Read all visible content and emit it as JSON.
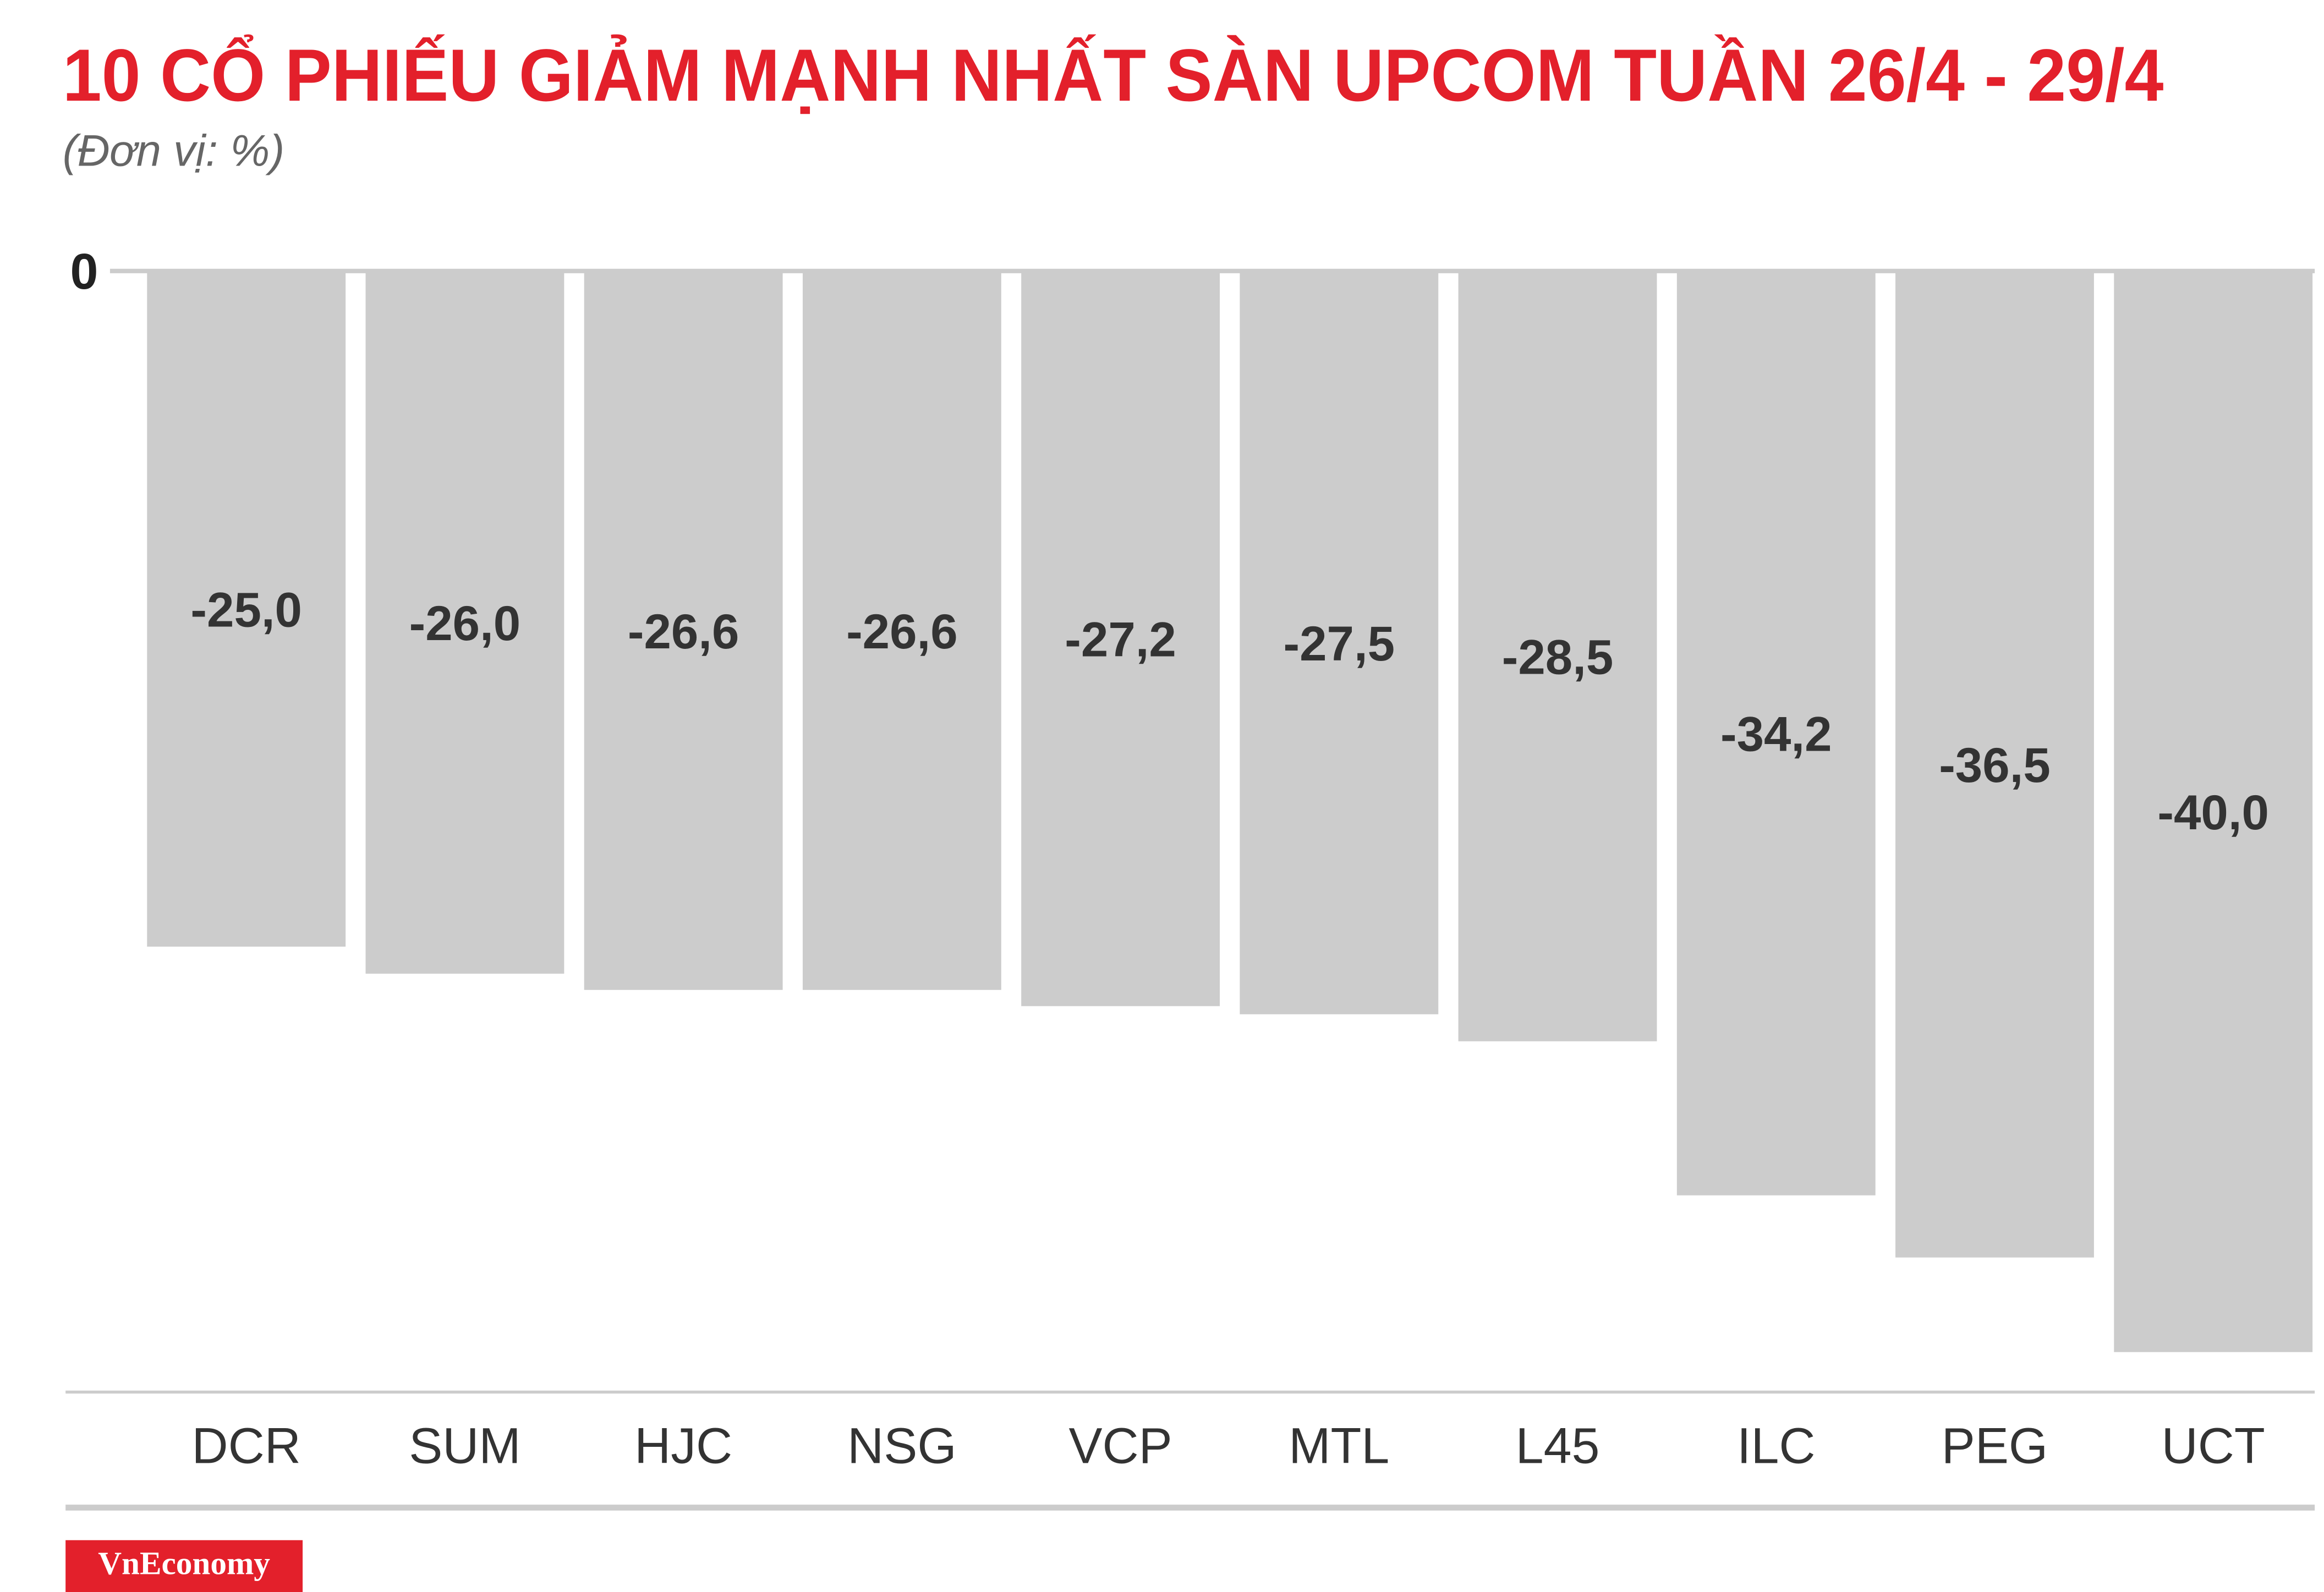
{
  "chart_data": {
    "type": "bar",
    "title": "10 CỔ PHIẾU GIẢM MẠNH NHẤT SÀN UPCOM TUẦN 26/4 - 29/4",
    "subtitle": "(Đơn vị: %)",
    "categories": [
      "DCR",
      "SUM",
      "HJC",
      "NSG",
      "VCP",
      "MTL",
      "L45",
      "ILC",
      "PEG",
      "UCT"
    ],
    "values": [
      -25.0,
      -26.0,
      -26.6,
      -26.6,
      -27.2,
      -27.5,
      -28.5,
      -34.2,
      -36.5,
      -40.0
    ],
    "value_labels": [
      "-25,0",
      "-26,0",
      "-26,6",
      "-26,6",
      "-27,2",
      "-27,5",
      "-28,5",
      "-34,2",
      "-36,5",
      "-40,0"
    ],
    "color": "#cccccc",
    "ylim": [
      -40,
      0
    ],
    "yticks": [
      0
    ],
    "grid": true
  },
  "logo": "VnEconomy"
}
